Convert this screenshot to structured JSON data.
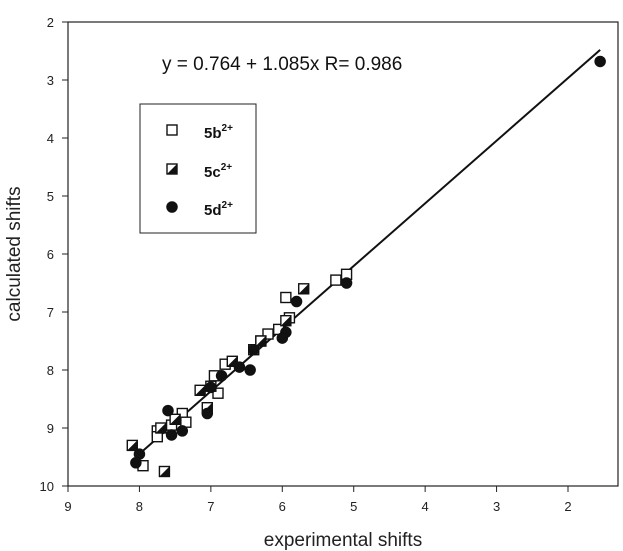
{
  "chart_data": {
    "type": "scatter",
    "title": "",
    "xlabel": "experimental shifts",
    "ylabel": "calculated shifts",
    "xlim": [
      9,
      1.3
    ],
    "ylim": [
      10,
      2
    ],
    "xticks": [
      "9",
      "8",
      "7",
      "6",
      "5",
      "4",
      "3",
      "2"
    ],
    "yticks": [
      "2",
      "3",
      "4",
      "5",
      "6",
      "7",
      "8",
      "9",
      "10"
    ],
    "annotation": "y = 0.764 + 1.085x   R= 0.986",
    "fit_line": {
      "intercept": 0.764,
      "slope": 1.085,
      "x_range": [
        8.05,
        1.55
      ]
    },
    "grid": false,
    "legend_position": "upper-left",
    "series": [
      {
        "name": "5b",
        "name_sup": "2+",
        "marker": "open-square",
        "points": [
          [
            5.1,
            6.35
          ],
          [
            5.25,
            6.45
          ],
          [
            5.95,
            6.75
          ],
          [
            5.9,
            7.1
          ],
          [
            6.05,
            7.3
          ],
          [
            6.2,
            7.38
          ],
          [
            6.3,
            7.5
          ],
          [
            6.4,
            7.65
          ],
          [
            6.8,
            7.9
          ],
          [
            6.95,
            8.1
          ],
          [
            6.9,
            8.4
          ],
          [
            7.0,
            8.28
          ],
          [
            7.4,
            8.75
          ],
          [
            7.35,
            8.9
          ],
          [
            7.55,
            8.95
          ],
          [
            7.75,
            9.05
          ],
          [
            7.75,
            9.15
          ],
          [
            7.95,
            9.65
          ]
        ]
      },
      {
        "name": "5c",
        "name_sup": "2+",
        "marker": "half-filled-square",
        "points": [
          [
            5.7,
            6.6
          ],
          [
            5.95,
            7.15
          ],
          [
            6.3,
            7.5
          ],
          [
            6.7,
            7.85
          ],
          [
            7.15,
            8.35
          ],
          [
            7.05,
            8.65
          ],
          [
            7.5,
            8.85
          ],
          [
            7.7,
            9.0
          ],
          [
            8.1,
            9.3
          ],
          [
            7.65,
            9.75
          ]
        ]
      },
      {
        "name": "5d",
        "name_sup": "2+",
        "marker": "filled-circle",
        "points": [
          [
            1.55,
            2.68
          ],
          [
            5.1,
            6.5
          ],
          [
            5.8,
            6.82
          ],
          [
            5.95,
            7.35
          ],
          [
            6.0,
            7.45
          ],
          [
            6.4,
            7.65
          ],
          [
            6.6,
            7.95
          ],
          [
            6.45,
            8.0
          ],
          [
            6.85,
            8.1
          ],
          [
            7.0,
            8.3
          ],
          [
            7.05,
            8.75
          ],
          [
            7.6,
            8.7
          ],
          [
            7.4,
            9.05
          ],
          [
            7.55,
            9.12
          ],
          [
            8.0,
            9.45
          ],
          [
            8.05,
            9.6
          ]
        ]
      }
    ]
  }
}
